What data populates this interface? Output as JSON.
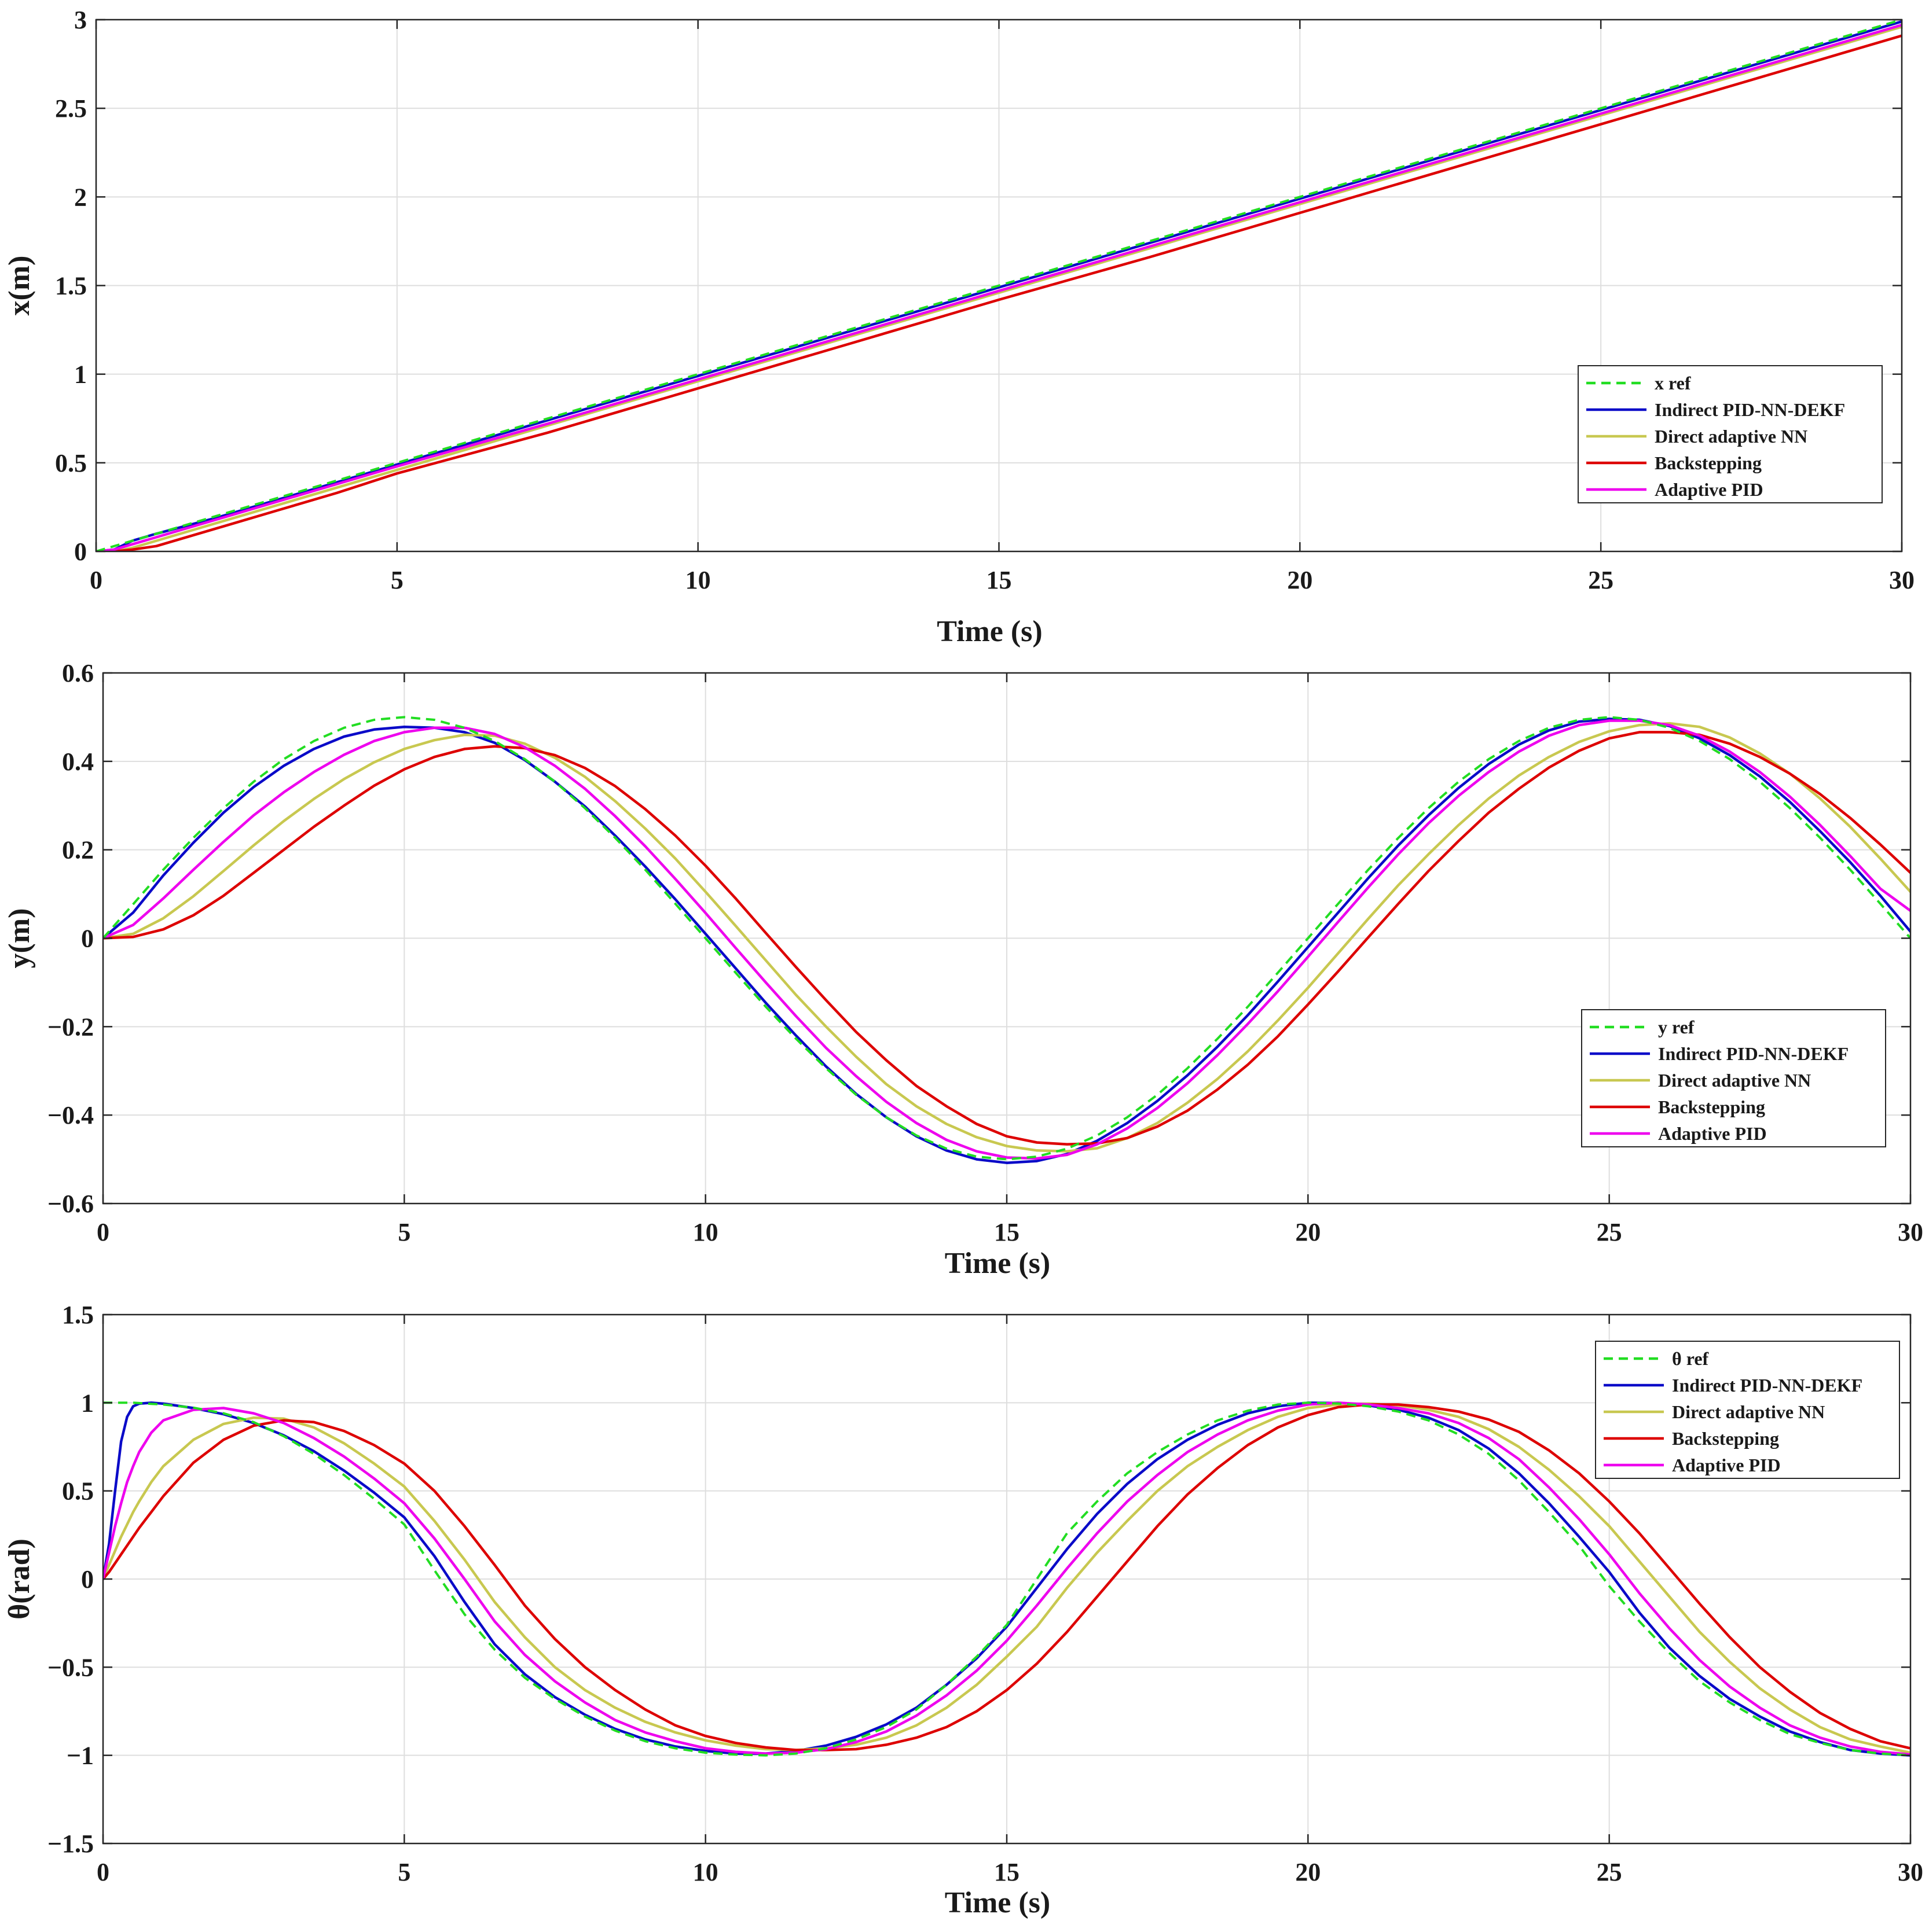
{
  "legend_labels": {
    "ind": "Indirect PID-NN-DEKF",
    "dir": "Direct adaptive NN",
    "bs": "Backstepping",
    "apid": "Adaptive PID"
  },
  "series_colors": {
    "ref": "#22dd22",
    "ind": "#0a0ac8",
    "dir": "#c8c850",
    "bs": "#dd0000",
    "apid": "#ee00ee"
  },
  "chart_data": [
    {
      "type": "line",
      "title": "",
      "xlabel": "Time (s)",
      "ylabel": "x(m)",
      "xlim": [
        0,
        30
      ],
      "ylim": [
        0,
        3
      ],
      "xticks": [
        "0",
        "5",
        "10",
        "15",
        "20",
        "25",
        "30"
      ],
      "yticks": [
        "0",
        "0.5",
        "1",
        "1.5",
        "2",
        "2.5",
        "3"
      ],
      "grid": true,
      "legend_location": "lower-right",
      "ref_label": "x ref",
      "x": [
        0,
        0.3,
        0.6,
        1,
        2,
        3,
        4,
        5,
        7.5,
        10,
        12.5,
        15,
        17.5,
        20,
        22.5,
        25,
        27.5,
        30
      ],
      "series": [
        {
          "key": "ref",
          "name": "x ref",
          "dashed": true,
          "values": [
            0,
            0.03,
            0.06,
            0.1,
            0.2,
            0.3,
            0.4,
            0.5,
            0.75,
            1.0,
            1.25,
            1.5,
            1.75,
            2.0,
            2.25,
            2.5,
            2.75,
            3.0
          ]
        },
        {
          "key": "ind",
          "name": "Indirect PID-NN-DEKF",
          "values": [
            0,
            0.01,
            0.06,
            0.1,
            0.19,
            0.29,
            0.39,
            0.49,
            0.74,
            0.99,
            1.24,
            1.49,
            1.74,
            1.99,
            2.24,
            2.49,
            2.74,
            2.99
          ]
        },
        {
          "key": "dir",
          "name": "Direct adaptive NN",
          "values": [
            0,
            0.0,
            0.02,
            0.06,
            0.16,
            0.26,
            0.36,
            0.46,
            0.71,
            0.96,
            1.21,
            1.46,
            1.71,
            1.96,
            2.21,
            2.46,
            2.71,
            2.96
          ]
        },
        {
          "key": "bs",
          "name": "Backstepping",
          "values": [
            0,
            0.0,
            0.01,
            0.03,
            0.13,
            0.23,
            0.33,
            0.44,
            0.67,
            0.92,
            1.17,
            1.42,
            1.66,
            1.91,
            2.16,
            2.41,
            2.66,
            2.91
          ]
        },
        {
          "key": "apid",
          "name": "Adaptive PID",
          "values": [
            0,
            0.01,
            0.04,
            0.08,
            0.18,
            0.28,
            0.38,
            0.48,
            0.72,
            0.97,
            1.22,
            1.47,
            1.72,
            1.97,
            2.22,
            2.47,
            2.72,
            2.97
          ]
        }
      ]
    },
    {
      "type": "line",
      "title": "",
      "xlabel": "Time (s)",
      "ylabel": "y(m)",
      "xlim": [
        0,
        30
      ],
      "ylim": [
        -0.6,
        0.6
      ],
      "xticks": [
        "0",
        "5",
        "10",
        "15",
        "20",
        "25",
        "30"
      ],
      "yticks": [
        "−0.6",
        "−0.4",
        "−0.2",
        "0",
        "0.2",
        "0.4",
        "0.6"
      ],
      "grid": true,
      "legend_location": "lower-right",
      "ref_label": "y ref",
      "x": [
        0,
        0.5,
        1,
        1.5,
        2,
        2.5,
        3,
        3.5,
        4,
        4.5,
        5,
        5.5,
        6,
        6.5,
        7,
        7.5,
        8,
        8.5,
        9,
        9.5,
        10,
        10.5,
        11,
        11.5,
        12,
        12.5,
        13,
        13.5,
        14,
        14.5,
        15,
        15.5,
        16,
        16.5,
        17,
        17.5,
        18,
        18.5,
        19,
        19.5,
        20,
        20.5,
        21,
        21.5,
        22,
        22.5,
        23,
        23.5,
        24,
        24.5,
        25,
        25.5,
        26,
        26.5,
        27,
        27.5,
        28,
        28.5,
        29,
        29.5,
        30
      ],
      "series": [
        {
          "key": "ref",
          "name": "y ref",
          "dashed": true,
          "values": [
            0.0,
            0.077,
            0.155,
            0.227,
            0.294,
            0.354,
            0.405,
            0.446,
            0.476,
            0.494,
            0.5,
            0.494,
            0.476,
            0.446,
            0.405,
            0.354,
            0.294,
            0.227,
            0.155,
            0.078,
            0.0,
            -0.078,
            -0.155,
            -0.227,
            -0.294,
            -0.354,
            -0.405,
            -0.446,
            -0.476,
            -0.494,
            -0.5,
            -0.494,
            -0.476,
            -0.446,
            -0.405,
            -0.354,
            -0.294,
            -0.227,
            -0.155,
            -0.078,
            0.0,
            0.078,
            0.155,
            0.227,
            0.294,
            0.354,
            0.405,
            0.446,
            0.476,
            0.494,
            0.5,
            0.494,
            0.476,
            0.446,
            0.405,
            0.354,
            0.294,
            0.227,
            0.155,
            0.078,
            0.0
          ]
        },
        {
          "key": "ind",
          "name": "Indirect PID-NN-DEKF",
          "values": [
            0.0,
            0.058,
            0.142,
            0.216,
            0.284,
            0.342,
            0.39,
            0.428,
            0.456,
            0.472,
            0.478,
            0.476,
            0.466,
            0.442,
            0.403,
            0.354,
            0.298,
            0.232,
            0.162,
            0.088,
            0.01,
            -0.068,
            -0.146,
            -0.22,
            -0.29,
            -0.352,
            -0.405,
            -0.448,
            -0.48,
            -0.5,
            -0.508,
            -0.504,
            -0.488,
            -0.458,
            -0.418,
            -0.368,
            -0.31,
            -0.245,
            -0.174,
            -0.098,
            -0.02,
            0.058,
            0.136,
            0.21,
            0.278,
            0.34,
            0.394,
            0.438,
            0.47,
            0.49,
            0.496,
            0.494,
            0.48,
            0.452,
            0.414,
            0.366,
            0.308,
            0.242,
            0.172,
            0.096,
            0.015
          ]
        },
        {
          "key": "dir",
          "name": "Direct adaptive NN",
          "values": [
            0.0,
            0.01,
            0.045,
            0.095,
            0.152,
            0.21,
            0.265,
            0.315,
            0.36,
            0.398,
            0.428,
            0.448,
            0.46,
            0.458,
            0.44,
            0.408,
            0.365,
            0.31,
            0.248,
            0.18,
            0.105,
            0.028,
            -0.05,
            -0.128,
            -0.2,
            -0.268,
            -0.33,
            -0.38,
            -0.42,
            -0.45,
            -0.47,
            -0.48,
            -0.482,
            -0.475,
            -0.452,
            -0.418,
            -0.372,
            -0.318,
            -0.256,
            -0.186,
            -0.112,
            -0.034,
            0.044,
            0.12,
            0.19,
            0.256,
            0.316,
            0.368,
            0.41,
            0.444,
            0.468,
            0.482,
            0.486,
            0.478,
            0.454,
            0.418,
            0.372,
            0.316,
            0.252,
            0.18,
            0.105
          ]
        },
        {
          "key": "bs",
          "name": "Backstepping",
          "values": [
            0.0,
            0.003,
            0.02,
            0.052,
            0.096,
            0.148,
            0.2,
            0.252,
            0.3,
            0.345,
            0.382,
            0.41,
            0.428,
            0.434,
            0.43,
            0.414,
            0.385,
            0.344,
            0.292,
            0.232,
            0.164,
            0.09,
            0.012,
            -0.065,
            -0.14,
            -0.212,
            -0.276,
            -0.334,
            -0.38,
            -0.42,
            -0.448,
            -0.462,
            -0.466,
            -0.464,
            -0.452,
            -0.426,
            -0.39,
            -0.342,
            -0.286,
            -0.222,
            -0.15,
            -0.075,
            0.002,
            0.078,
            0.152,
            0.22,
            0.284,
            0.338,
            0.386,
            0.424,
            0.452,
            0.466,
            0.466,
            0.46,
            0.44,
            0.41,
            0.372,
            0.326,
            0.272,
            0.212,
            0.148
          ]
        },
        {
          "key": "apid",
          "name": "Adaptive PID",
          "values": [
            0.0,
            0.03,
            0.09,
            0.155,
            0.218,
            0.278,
            0.33,
            0.376,
            0.415,
            0.446,
            0.466,
            0.476,
            0.476,
            0.462,
            0.432,
            0.39,
            0.338,
            0.276,
            0.208,
            0.134,
            0.057,
            -0.022,
            -0.1,
            -0.176,
            -0.248,
            -0.312,
            -0.37,
            -0.418,
            -0.456,
            -0.482,
            -0.496,
            -0.498,
            -0.49,
            -0.466,
            -0.43,
            -0.384,
            -0.328,
            -0.264,
            -0.194,
            -0.12,
            -0.042,
            0.037,
            0.115,
            0.19,
            0.26,
            0.322,
            0.376,
            0.422,
            0.458,
            0.482,
            0.492,
            0.492,
            0.482,
            0.458,
            0.422,
            0.376,
            0.32,
            0.256,
            0.186,
            0.112,
            0.062
          ]
        }
      ]
    },
    {
      "type": "line",
      "title": "",
      "xlabel": "Time (s)",
      "ylabel": "θ(rad)",
      "xlim": [
        0,
        30
      ],
      "ylim": [
        -1.5,
        1.5
      ],
      "xticks": [
        "0",
        "5",
        "10",
        "15",
        "20",
        "25",
        "30"
      ],
      "yticks": [
        "−1.5",
        "−1",
        "−0.5",
        "0",
        "0.5",
        "1",
        "1.5"
      ],
      "grid": true,
      "legend_location": "top-right",
      "ref_label": "θ ref",
      "x": [
        0,
        0.1,
        0.2,
        0.3,
        0.4,
        0.5,
        0.6,
        0.8,
        1,
        1.5,
        2,
        2.5,
        3,
        3.5,
        4,
        4.5,
        5,
        5.5,
        6,
        6.5,
        7,
        7.5,
        8,
        8.5,
        9,
        9.5,
        10,
        10.5,
        11,
        11.5,
        12,
        12.5,
        13,
        13.5,
        14,
        14.5,
        15,
        15.5,
        16,
        16.5,
        17,
        17.5,
        18,
        18.5,
        19,
        19.5,
        20,
        20.5,
        21,
        21.5,
        22,
        22.5,
        23,
        23.5,
        24,
        24.5,
        25,
        25.5,
        26,
        26.5,
        27,
        27.5,
        28,
        28.5,
        29,
        29.5,
        30
      ],
      "series": [
        {
          "key": "ref",
          "name": "θ ref",
          "dashed": true,
          "values": [
            1.0,
            1.0,
            1.0,
            1.0,
            1.0,
            1.0,
            0.998,
            0.994,
            0.99,
            0.972,
            0.94,
            0.89,
            0.81,
            0.71,
            0.59,
            0.455,
            0.31,
            0.05,
            -0.2,
            -0.4,
            -0.56,
            -0.68,
            -0.78,
            -0.86,
            -0.92,
            -0.96,
            -0.985,
            -0.996,
            -1.0,
            -0.99,
            -0.96,
            -0.91,
            -0.84,
            -0.74,
            -0.6,
            -0.44,
            -0.26,
            0.0,
            0.26,
            0.44,
            0.6,
            0.72,
            0.82,
            0.9,
            0.955,
            0.99,
            1.0,
            0.996,
            0.98,
            0.95,
            0.9,
            0.82,
            0.71,
            0.56,
            0.38,
            0.19,
            -0.04,
            -0.24,
            -0.42,
            -0.58,
            -0.7,
            -0.8,
            -0.88,
            -0.93,
            -0.97,
            -0.99,
            -1.0
          ]
        },
        {
          "key": "ind",
          "name": "Indirect PID-NN-DEKF",
          "values": [
            0.0,
            0.2,
            0.5,
            0.78,
            0.92,
            0.98,
            0.995,
            1.0,
            0.995,
            0.97,
            0.935,
            0.885,
            0.815,
            0.725,
            0.615,
            0.49,
            0.35,
            0.13,
            -0.13,
            -0.37,
            -0.54,
            -0.67,
            -0.77,
            -0.85,
            -0.91,
            -0.95,
            -0.975,
            -0.99,
            -0.99,
            -0.975,
            -0.945,
            -0.895,
            -0.825,
            -0.73,
            -0.6,
            -0.45,
            -0.27,
            -0.05,
            0.17,
            0.37,
            0.54,
            0.68,
            0.79,
            0.875,
            0.94,
            0.98,
            1.0,
            0.998,
            0.985,
            0.96,
            0.915,
            0.845,
            0.74,
            0.6,
            0.43,
            0.24,
            0.04,
            -0.19,
            -0.39,
            -0.55,
            -0.68,
            -0.78,
            -0.865,
            -0.925,
            -0.97,
            -0.99,
            -1.0
          ]
        },
        {
          "key": "dir",
          "name": "Direct adaptive NN",
          "values": [
            0.0,
            0.08,
            0.16,
            0.24,
            0.31,
            0.38,
            0.44,
            0.55,
            0.64,
            0.79,
            0.88,
            0.915,
            0.91,
            0.86,
            0.77,
            0.655,
            0.525,
            0.33,
            0.11,
            -0.13,
            -0.33,
            -0.5,
            -0.63,
            -0.73,
            -0.81,
            -0.87,
            -0.915,
            -0.945,
            -0.965,
            -0.97,
            -0.96,
            -0.94,
            -0.9,
            -0.83,
            -0.73,
            -0.6,
            -0.44,
            -0.27,
            -0.05,
            0.15,
            0.33,
            0.5,
            0.64,
            0.75,
            0.845,
            0.92,
            0.97,
            0.99,
            0.995,
            0.985,
            0.96,
            0.92,
            0.85,
            0.75,
            0.62,
            0.47,
            0.3,
            0.1,
            -0.1,
            -0.3,
            -0.47,
            -0.62,
            -0.74,
            -0.84,
            -0.91,
            -0.95,
            -0.985
          ]
        },
        {
          "key": "bs",
          "name": "Backstepping",
          "values": [
            0.0,
            0.04,
            0.09,
            0.14,
            0.19,
            0.24,
            0.29,
            0.38,
            0.47,
            0.66,
            0.79,
            0.87,
            0.9,
            0.89,
            0.84,
            0.76,
            0.655,
            0.5,
            0.3,
            0.08,
            -0.15,
            -0.34,
            -0.5,
            -0.63,
            -0.74,
            -0.83,
            -0.89,
            -0.93,
            -0.955,
            -0.97,
            -0.97,
            -0.965,
            -0.94,
            -0.9,
            -0.84,
            -0.75,
            -0.63,
            -0.48,
            -0.3,
            -0.1,
            0.1,
            0.3,
            0.48,
            0.63,
            0.76,
            0.86,
            0.93,
            0.975,
            0.99,
            0.99,
            0.975,
            0.95,
            0.905,
            0.835,
            0.73,
            0.6,
            0.44,
            0.26,
            0.06,
            -0.14,
            -0.33,
            -0.5,
            -0.64,
            -0.76,
            -0.85,
            -0.92,
            -0.96
          ]
        },
        {
          "key": "apid",
          "name": "Adaptive PID",
          "values": [
            0.0,
            0.15,
            0.3,
            0.43,
            0.55,
            0.64,
            0.72,
            0.83,
            0.9,
            0.96,
            0.97,
            0.94,
            0.885,
            0.8,
            0.695,
            0.57,
            0.43,
            0.23,
            0.0,
            -0.24,
            -0.43,
            -0.58,
            -0.7,
            -0.8,
            -0.87,
            -0.92,
            -0.96,
            -0.98,
            -0.99,
            -0.985,
            -0.965,
            -0.925,
            -0.865,
            -0.775,
            -0.66,
            -0.52,
            -0.35,
            -0.15,
            0.06,
            0.26,
            0.44,
            0.59,
            0.72,
            0.82,
            0.9,
            0.955,
            0.99,
            1.0,
            0.99,
            0.97,
            0.94,
            0.885,
            0.8,
            0.68,
            0.52,
            0.34,
            0.14,
            -0.08,
            -0.28,
            -0.46,
            -0.61,
            -0.73,
            -0.83,
            -0.9,
            -0.95,
            -0.98,
            -0.995
          ]
        }
      ]
    }
  ]
}
